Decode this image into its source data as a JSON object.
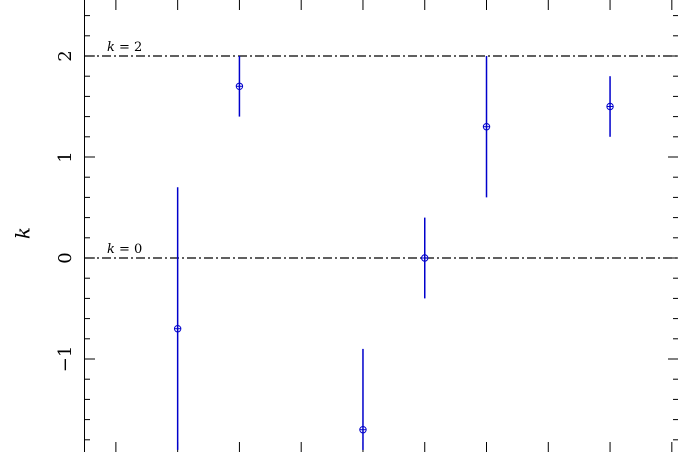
{
  "chart_data": {
    "type": "scatter",
    "title": "",
    "xlabel": "",
    "ylabel": "k",
    "ylim": [
      -1.9,
      2.5
    ],
    "xlim": [
      0,
      9.6
    ],
    "x_ticks": [
      0.5,
      1.5,
      2.5,
      3.5,
      4.5,
      5.5,
      6.5,
      7.5,
      8.5,
      9.5
    ],
    "y_ticks": [
      -1,
      0,
      1,
      2
    ],
    "y_tick_labels": [
      "−1",
      "0",
      "1",
      "2"
    ],
    "grid": false,
    "series": [
      {
        "marker": "circle-plus",
        "color": "#0000cc",
        "points": [
          {
            "x": 1.5,
            "y": -0.7,
            "low": -1.9,
            "high": 0.7
          },
          {
            "x": 2.5,
            "y": 1.7,
            "low": 1.4,
            "high": 2.0
          },
          {
            "x": 4.5,
            "y": -1.7,
            "low": -1.9,
            "high": -0.9
          },
          {
            "x": 5.5,
            "y": 0.0,
            "low": -0.4,
            "high": 0.4
          },
          {
            "x": 6.5,
            "y": 1.3,
            "low": 0.6,
            "high": 2.0
          },
          {
            "x": 8.5,
            "y": 1.5,
            "low": 1.2,
            "high": 1.8
          }
        ]
      }
    ],
    "reference_lines": [
      {
        "y": 2,
        "label_parts": [
          "k",
          " = 2"
        ],
        "style": "dash-dot"
      },
      {
        "y": 0,
        "label_parts": [
          "k",
          " = 0"
        ],
        "style": "dash-dot"
      }
    ]
  }
}
